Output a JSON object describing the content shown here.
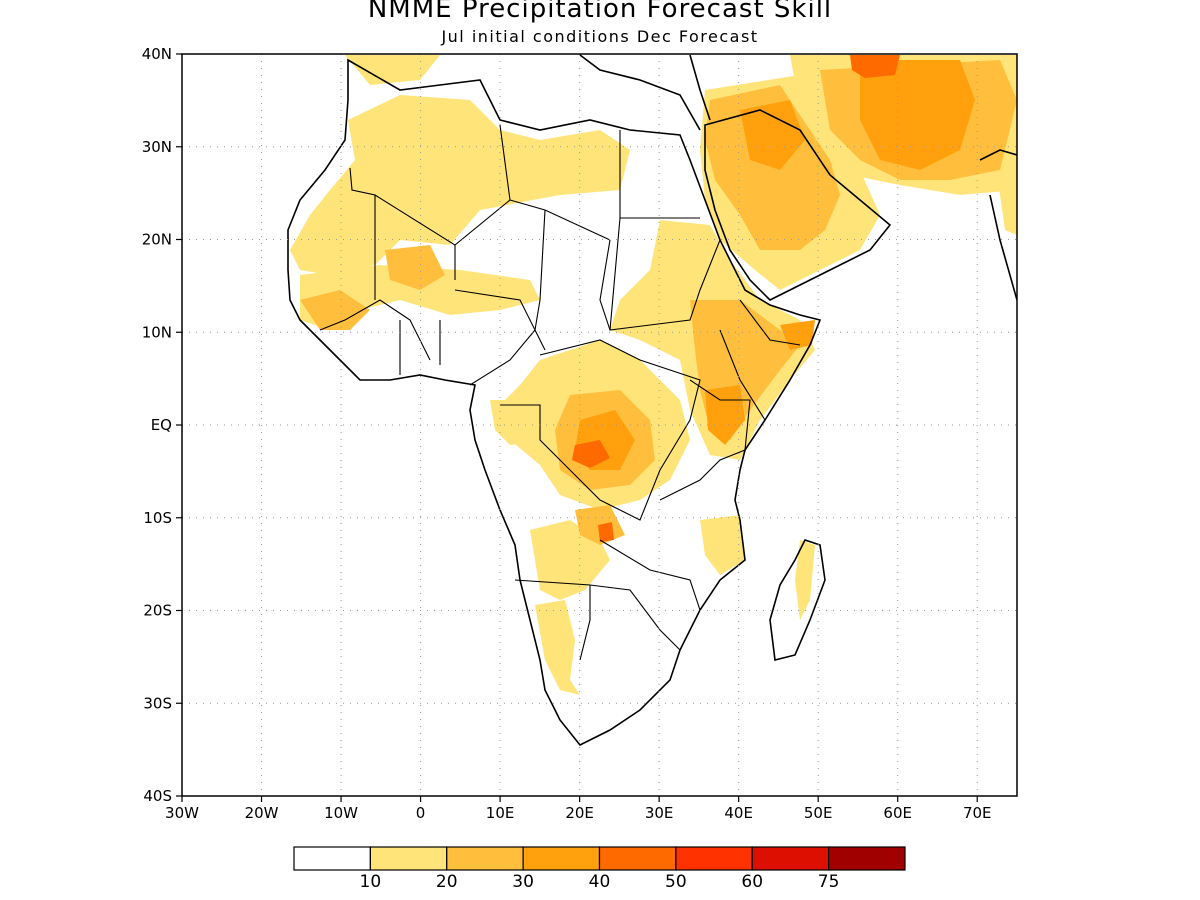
{
  "title": "NMME Precipitation Forecast Skill",
  "subtitle": "Jul initial conditions   Dec Forecast",
  "map": {
    "lon_range": [
      -30,
      75
    ],
    "lat_range": [
      -40,
      40
    ],
    "lat_ticks": [
      {
        "value": 40,
        "label": "40N"
      },
      {
        "value": 30,
        "label": "30N"
      },
      {
        "value": 20,
        "label": "20N"
      },
      {
        "value": 10,
        "label": "10N"
      },
      {
        "value": 0,
        "label": "EQ"
      },
      {
        "value": -10,
        "label": "10S"
      },
      {
        "value": -20,
        "label": "20S"
      },
      {
        "value": -30,
        "label": "30S"
      },
      {
        "value": -40,
        "label": "40S"
      }
    ],
    "lon_ticks": [
      {
        "value": -30,
        "label": "30W"
      },
      {
        "value": -20,
        "label": "20W"
      },
      {
        "value": -10,
        "label": "10W"
      },
      {
        "value": 0,
        "label": "0"
      },
      {
        "value": 10,
        "label": "10E"
      },
      {
        "value": 20,
        "label": "20E"
      },
      {
        "value": 30,
        "label": "30E"
      },
      {
        "value": 40,
        "label": "40E"
      },
      {
        "value": 50,
        "label": "50E"
      },
      {
        "value": 60,
        "label": "60E"
      },
      {
        "value": 70,
        "label": "70E"
      }
    ],
    "grid": true
  },
  "colorbar": {
    "colors": [
      "#ffffff",
      "#ffe47a",
      "#ffbf3c",
      "#ffa00c",
      "#ff6a00",
      "#ff3200",
      "#dc0f00",
      "#a00000"
    ],
    "labels": [
      "10",
      "20",
      "30",
      "40",
      "50",
      "60",
      "75"
    ]
  }
}
